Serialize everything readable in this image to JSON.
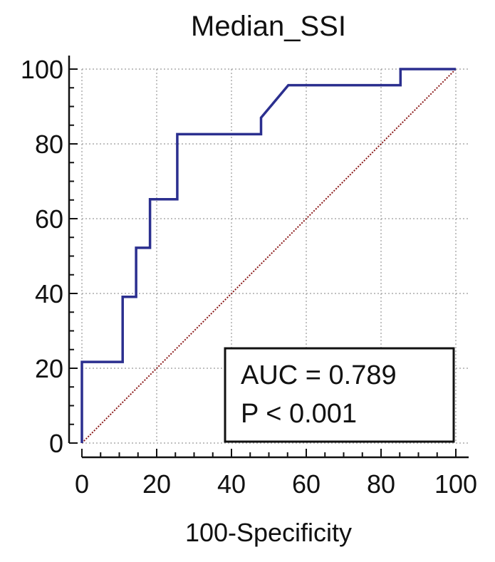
{
  "chart_data": {
    "type": "line",
    "title": "Median_SSI",
    "xlabel": "100-Specificity",
    "ylabel": "",
    "xlim": [
      0,
      100
    ],
    "ylim": [
      0,
      100
    ],
    "xticks": [
      "0",
      "20",
      "40",
      "60",
      "80",
      "100"
    ],
    "yticks": [
      "0",
      "20",
      "40",
      "60",
      "80",
      "100"
    ],
    "grid": true,
    "series": [
      {
        "color": "#2b2f8f",
        "style": "step",
        "x": [
          0,
          0,
          10.9,
          10.9,
          14.5,
          14.5,
          18.2,
          18.2,
          25.5,
          25.5,
          47.9,
          47.9,
          55.2,
          55.2,
          85.2,
          85.2,
          100
        ],
        "y": [
          0,
          21.7,
          21.7,
          39.1,
          39.1,
          52.2,
          52.2,
          65.2,
          65.2,
          82.6,
          82.6,
          87.0,
          95.7,
          95.7,
          95.7,
          100,
          100
        ]
      },
      {
        "color": "#8b1a1a",
        "style": "dotted",
        "x": [
          0,
          100
        ],
        "y": [
          0,
          100
        ]
      }
    ],
    "annotations": {
      "auc": "AUC = 0.789",
      "p": "P < 0.001"
    }
  }
}
